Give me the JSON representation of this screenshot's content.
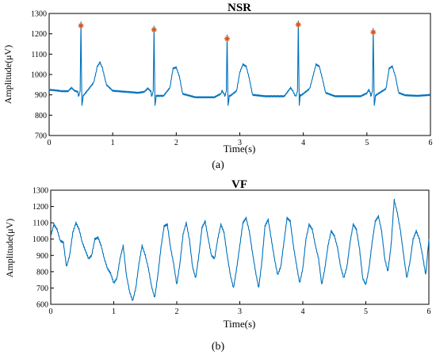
{
  "colors": {
    "line": "#0072BD",
    "marker": "#D95319",
    "axis": "#000000",
    "background": "#ffffff"
  },
  "chart_data": [
    {
      "type": "line",
      "title": "NSR",
      "caption": "(a)",
      "xlabel": "Time(s)",
      "ylabel": "Amplitude(μV)",
      "xlim": [
        0,
        6
      ],
      "ylim": [
        700,
        1300
      ],
      "xticks": [
        0,
        1,
        2,
        3,
        4,
        5,
        6
      ],
      "yticks": [
        700,
        800,
        900,
        1000,
        1100,
        1200,
        1300
      ],
      "grid": false,
      "legend": "none",
      "series": [
        {
          "kind": "line",
          "baseline_points": [
            [
              0,
              925
            ],
            [
              0.1,
              922
            ],
            [
              0.2,
              918
            ],
            [
              0.3,
              918
            ],
            [
              0.35,
              935
            ],
            [
              0.4,
              920
            ],
            [
              0.45,
              915
            ],
            [
              0.6,
              920
            ],
            [
              0.7,
              960
            ],
            [
              0.76,
              1040
            ],
            [
              0.8,
              1060
            ],
            [
              0.84,
              1030
            ],
            [
              0.9,
              950
            ],
            [
              1.0,
              920
            ],
            [
              1.2,
              915
            ],
            [
              1.4,
              910
            ],
            [
              1.5,
              915
            ],
            [
              1.55,
              932
            ],
            [
              1.6,
              918
            ],
            [
              1.7,
              895
            ],
            [
              1.8,
              895
            ],
            [
              1.9,
              935
            ],
            [
              1.95,
              1030
            ],
            [
              2.0,
              1035
            ],
            [
              2.05,
              990
            ],
            [
              2.1,
              905
            ],
            [
              2.3,
              888
            ],
            [
              2.6,
              888
            ],
            [
              2.7,
              905
            ],
            [
              2.72,
              920
            ],
            [
              2.76,
              900
            ],
            [
              2.85,
              895
            ],
            [
              2.95,
              920
            ],
            [
              3.0,
              1010
            ],
            [
              3.05,
              1050
            ],
            [
              3.1,
              1040
            ],
            [
              3.15,
              980
            ],
            [
              3.2,
              900
            ],
            [
              3.4,
              893
            ],
            [
              3.7,
              893
            ],
            [
              3.8,
              935
            ],
            [
              3.84,
              915
            ],
            [
              3.95,
              900
            ],
            [
              4.1,
              930
            ],
            [
              4.2,
              1050
            ],
            [
              4.25,
              1040
            ],
            [
              4.3,
              980
            ],
            [
              4.35,
              910
            ],
            [
              4.5,
              893
            ],
            [
              4.9,
              893
            ],
            [
              5.0,
              908
            ],
            [
              5.03,
              925
            ],
            [
              5.06,
              905
            ],
            [
              5.15,
              900
            ],
            [
              5.3,
              930
            ],
            [
              5.35,
              1030
            ],
            [
              5.4,
              1040
            ],
            [
              5.45,
              990
            ],
            [
              5.5,
              910
            ],
            [
              5.6,
              898
            ],
            [
              5.8,
              895
            ],
            [
              6.0,
              900
            ]
          ],
          "r_peaks": [
            [
              0.5,
              1240
            ],
            [
              1.65,
              1220
            ],
            [
              2.8,
              1176
            ],
            [
              3.92,
              1245
            ],
            [
              5.1,
              1208
            ]
          ]
        },
        {
          "kind": "markers",
          "marker": "*",
          "x": [
            0.5,
            1.65,
            2.8,
            3.92,
            5.1
          ],
          "y": [
            1240,
            1220,
            1176,
            1245,
            1208
          ]
        }
      ]
    },
    {
      "type": "line",
      "title": "VF",
      "caption": "(b)",
      "xlabel": "Time(s)",
      "ylabel": "Amplitude(μV)",
      "xlim": [
        0,
        6
      ],
      "ylim": [
        600,
        1300
      ],
      "xticks": [
        0,
        1,
        2,
        3,
        4,
        5,
        6
      ],
      "yticks": [
        600,
        700,
        800,
        900,
        1000,
        1100,
        1200,
        1300
      ],
      "grid": false,
      "legend": "none",
      "series": [
        {
          "kind": "line",
          "points": [
            [
              0,
              1020
            ],
            [
              0.05,
              1090
            ],
            [
              0.1,
              1060
            ],
            [
              0.15,
              990
            ],
            [
              0.2,
              980
            ],
            [
              0.25,
              830
            ],
            [
              0.3,
              900
            ],
            [
              0.35,
              1040
            ],
            [
              0.4,
              1100
            ],
            [
              0.45,
              1060
            ],
            [
              0.5,
              980
            ],
            [
              0.55,
              930
            ],
            [
              0.6,
              880
            ],
            [
              0.65,
              900
            ],
            [
              0.7,
              1000
            ],
            [
              0.75,
              1010
            ],
            [
              0.8,
              960
            ],
            [
              0.85,
              880
            ],
            [
              0.9,
              820
            ],
            [
              0.95,
              790
            ],
            [
              1.0,
              730
            ],
            [
              1.05,
              760
            ],
            [
              1.1,
              880
            ],
            [
              1.15,
              960
            ],
            [
              1.2,
              780
            ],
            [
              1.25,
              680
            ],
            [
              1.3,
              620
            ],
            [
              1.35,
              700
            ],
            [
              1.4,
              850
            ],
            [
              1.45,
              960
            ],
            [
              1.5,
              900
            ],
            [
              1.55,
              820
            ],
            [
              1.6,
              710
            ],
            [
              1.65,
              640
            ],
            [
              1.7,
              780
            ],
            [
              1.75,
              950
            ],
            [
              1.8,
              1080
            ],
            [
              1.85,
              1090
            ],
            [
              1.9,
              950
            ],
            [
              1.95,
              850
            ],
            [
              2.0,
              720
            ],
            [
              2.05,
              850
            ],
            [
              2.1,
              1030
            ],
            [
              2.15,
              1100
            ],
            [
              2.2,
              1000
            ],
            [
              2.25,
              830
            ],
            [
              2.3,
              760
            ],
            [
              2.35,
              900
            ],
            [
              2.4,
              1070
            ],
            [
              2.45,
              1110
            ],
            [
              2.5,
              1000
            ],
            [
              2.55,
              900
            ],
            [
              2.6,
              880
            ],
            [
              2.65,
              1000
            ],
            [
              2.7,
              1090
            ],
            [
              2.75,
              1040
            ],
            [
              2.8,
              900
            ],
            [
              2.85,
              780
            ],
            [
              2.9,
              700
            ],
            [
              2.95,
              820
            ],
            [
              3.0,
              960
            ],
            [
              3.05,
              1100
            ],
            [
              3.1,
              1130
            ],
            [
              3.15,
              1050
            ],
            [
              3.2,
              920
            ],
            [
              3.25,
              800
            ],
            [
              3.3,
              700
            ],
            [
              3.35,
              860
            ],
            [
              3.4,
              1080
            ],
            [
              3.45,
              1120
            ],
            [
              3.5,
              1000
            ],
            [
              3.55,
              880
            ],
            [
              3.6,
              780
            ],
            [
              3.65,
              830
            ],
            [
              3.7,
              980
            ],
            [
              3.75,
              1130
            ],
            [
              3.8,
              1110
            ],
            [
              3.85,
              960
            ],
            [
              3.9,
              840
            ],
            [
              3.95,
              730
            ],
            [
              4.0,
              820
            ],
            [
              4.05,
              1000
            ],
            [
              4.1,
              1090
            ],
            [
              4.15,
              1060
            ],
            [
              4.2,
              960
            ],
            [
              4.25,
              880
            ],
            [
              4.3,
              720
            ],
            [
              4.35,
              820
            ],
            [
              4.4,
              960
            ],
            [
              4.45,
              1050
            ],
            [
              4.5,
              1020
            ],
            [
              4.55,
              950
            ],
            [
              4.6,
              830
            ],
            [
              4.65,
              760
            ],
            [
              4.7,
              830
            ],
            [
              4.75,
              980
            ],
            [
              4.8,
              1090
            ],
            [
              4.85,
              1060
            ],
            [
              4.9,
              940
            ],
            [
              4.95,
              760
            ],
            [
              5.0,
              720
            ],
            [
              5.05,
              820
            ],
            [
              5.1,
              980
            ],
            [
              5.15,
              1110
            ],
            [
              5.2,
              1140
            ],
            [
              5.25,
              1050
            ],
            [
              5.3,
              880
            ],
            [
              5.35,
              800
            ],
            [
              5.4,
              960
            ],
            [
              5.45,
              1240
            ],
            [
              5.5,
              1160
            ],
            [
              5.55,
              1050
            ],
            [
              5.6,
              900
            ],
            [
              5.65,
              760
            ],
            [
              5.7,
              860
            ],
            [
              5.75,
              1000
            ],
            [
              5.8,
              1050
            ],
            [
              5.85,
              1000
            ],
            [
              5.9,
              900
            ],
            [
              5.95,
              780
            ],
            [
              6.0,
              1000
            ]
          ]
        }
      ]
    }
  ]
}
